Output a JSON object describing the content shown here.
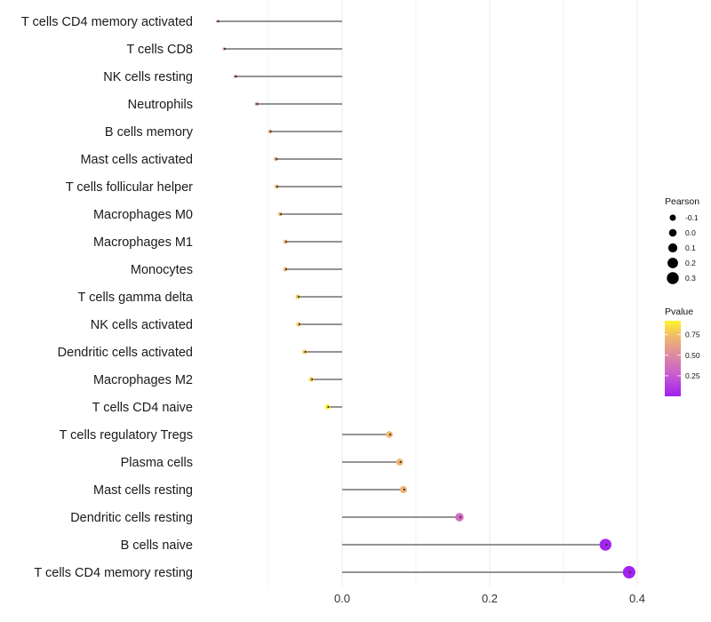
{
  "chart_data": {
    "type": "lollipop",
    "title": "",
    "xlabel": "",
    "ylabel": "",
    "xlim": [
      -0.2,
      0.42
    ],
    "xticks": [
      "0.0",
      "0.2",
      "0.4"
    ],
    "xtick_values": [
      0,
      0.2,
      0.4
    ],
    "grid": true,
    "categories": [
      "T cells CD4 memory activated",
      "T cells CD8",
      "NK cells resting",
      "Neutrophils",
      "B cells memory",
      "Mast cells activated",
      "T cells follicular helper",
      "Macrophages M0",
      "Macrophages M1",
      "Monocytes",
      "T cells gamma delta",
      "NK cells activated",
      "Dendritic cells activated",
      "Macrophages M2",
      "T cells CD4 naive",
      "T cells regulatory  Tregs",
      "Plasma cells",
      "Mast cells resting",
      "Dendritic cells resting",
      "B cells naive",
      "T cells CD4 memory resting"
    ],
    "pearson": [
      -0.169,
      -0.16,
      -0.145,
      -0.116,
      -0.098,
      -0.09,
      -0.089,
      -0.084,
      -0.077,
      -0.077,
      -0.06,
      -0.059,
      -0.051,
      -0.042,
      -0.02,
      0.064,
      0.078,
      0.083,
      0.159,
      0.357,
      0.389
    ],
    "pvalue": [
      0.35,
      0.38,
      0.4,
      0.5,
      0.65,
      0.67,
      0.68,
      0.7,
      0.72,
      0.72,
      0.78,
      0.78,
      0.8,
      0.82,
      0.92,
      0.72,
      0.7,
      0.68,
      0.35,
      0.02,
      0.01
    ],
    "legend": {
      "size_title": "Pearson",
      "size_labels": [
        "-0.1",
        "0.0",
        "0.1",
        "0.2",
        "0.3"
      ],
      "size_values": [
        -0.1,
        0,
        0.1,
        0.2,
        0.3
      ],
      "color_title": "Pvalue",
      "color_labels": [
        "0.75",
        "0.50",
        "0.25"
      ],
      "color_values": [
        0.75,
        0.5,
        0.25
      ],
      "color_range": [
        0,
        0.92
      ],
      "placement": "right"
    },
    "colors": {
      "low": "#A020F0",
      "mid": "#DE8A9E",
      "high_mid": "#F2BA6A",
      "high": "#FFF52A",
      "stem": "#555555"
    }
  }
}
